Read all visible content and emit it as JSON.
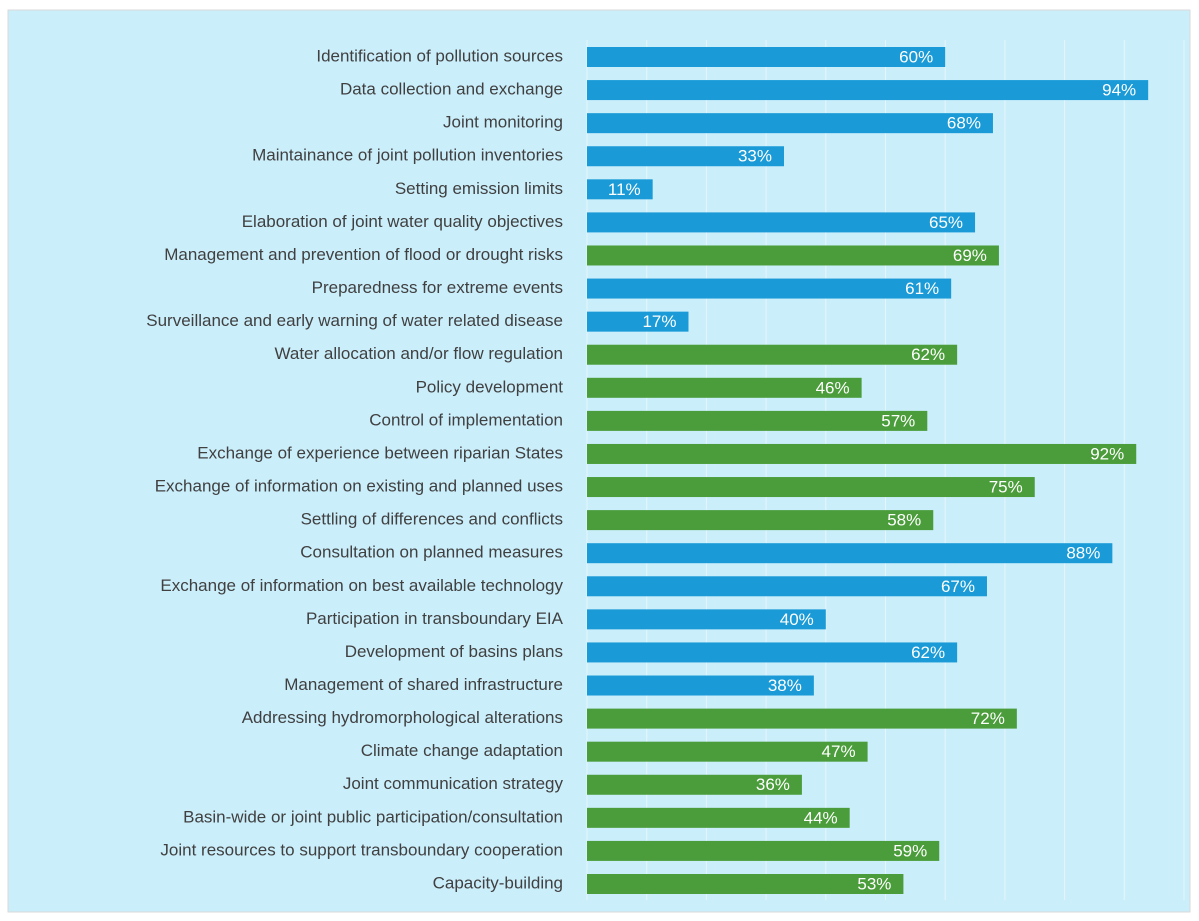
{
  "chart_data": {
    "type": "barh",
    "categories": [
      "Identification of pollution sources",
      "Data collection and exchange",
      "Joint monitoring",
      "Maintainance of joint pollution inventories",
      "Setting emission limits",
      "Elaboration of joint water quality objectives",
      "Management and prevention of flood or drought risks",
      "Preparedness for extreme events",
      "Surveillance and early warning of water related disease",
      "Water allocation and/or flow regulation",
      "Policy development",
      "Control of implementation",
      "Exchange of experience between riparian States",
      "Exchange of information on existing and planned uses",
      "Settling of differences and conflicts",
      "Consultation on planned measures",
      "Exchange of information on best available technology",
      "Participation in transboundary EIA",
      "Development of basins plans",
      "Management of shared infrastructure",
      "Addressing hydromorphological alterations",
      "Climate change adaptation",
      "Joint communication strategy",
      "Basin-wide or joint public participation/consultation",
      "Joint resources to support transboundary cooperation",
      "Capacity-building"
    ],
    "values": [
      60,
      94,
      68,
      33,
      11,
      65,
      69,
      61,
      17,
      62,
      46,
      57,
      92,
      75,
      58,
      88,
      67,
      40,
      62,
      38,
      72,
      47,
      36,
      44,
      59,
      53
    ],
    "value_labels": [
      "60%",
      "94%",
      "68%",
      "33%",
      "11%",
      "65%",
      "69%",
      "61%",
      "17%",
      "62%",
      "46%",
      "57%",
      "92%",
      "75%",
      "58%",
      "88%",
      "67%",
      "40%",
      "62%",
      "38%",
      "72%",
      "47%",
      "36%",
      "44%",
      "59%",
      "53%"
    ],
    "colors": [
      "#1a9bd7",
      "#1a9bd7",
      "#1a9bd7",
      "#1a9bd7",
      "#1a9bd7",
      "#1a9bd7",
      "#4a9d3a",
      "#1a9bd7",
      "#1a9bd7",
      "#4a9d3a",
      "#4a9d3a",
      "#4a9d3a",
      "#4a9d3a",
      "#4a9d3a",
      "#4a9d3a",
      "#1a9bd7",
      "#1a9bd7",
      "#1a9bd7",
      "#1a9bd7",
      "#1a9bd7",
      "#4a9d3a",
      "#4a9d3a",
      "#4a9d3a",
      "#4a9d3a",
      "#4a9d3a",
      "#4a9d3a"
    ],
    "xlim": [
      0,
      100
    ],
    "xticks": [
      0,
      10,
      20,
      30,
      40,
      50,
      60,
      70,
      80,
      90,
      100
    ],
    "grid": true
  }
}
